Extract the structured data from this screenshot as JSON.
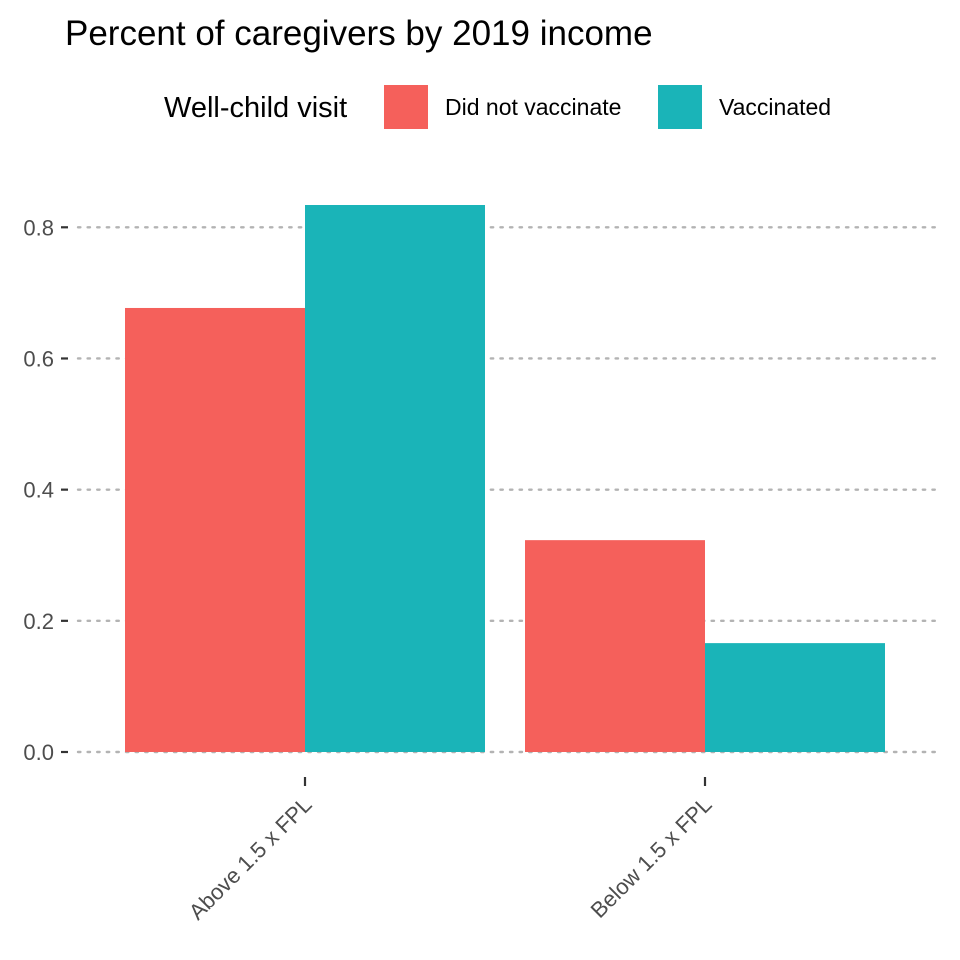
{
  "chart_data": {
    "type": "bar",
    "title": "Percent of caregivers by 2019 income",
    "xlabel": "",
    "ylabel": "",
    "categories": [
      "Above 1.5 x FPL",
      "Below 1.5 x FPL"
    ],
    "legend": {
      "title": "Well-child visit",
      "position": "top"
    },
    "series": [
      {
        "name": "Did not vaccinate",
        "color": "#F8766D",
        "values": [
          0.677,
          0.323
        ]
      },
      {
        "name": "Vaccinated",
        "color": "#00BFC4",
        "values": [
          0.834,
          0.166
        ]
      }
    ],
    "ylim": [
      0,
      0.834
    ],
    "yticks": [
      0.0,
      0.2,
      0.4,
      0.6,
      0.8
    ],
    "ytick_labels": [
      "0.0",
      "0.2",
      "0.4",
      "0.6",
      "0.8"
    ],
    "grid": "major-y-dotted",
    "bar_colors_actual": [
      "#F5605B",
      "#1AB4B8"
    ]
  }
}
